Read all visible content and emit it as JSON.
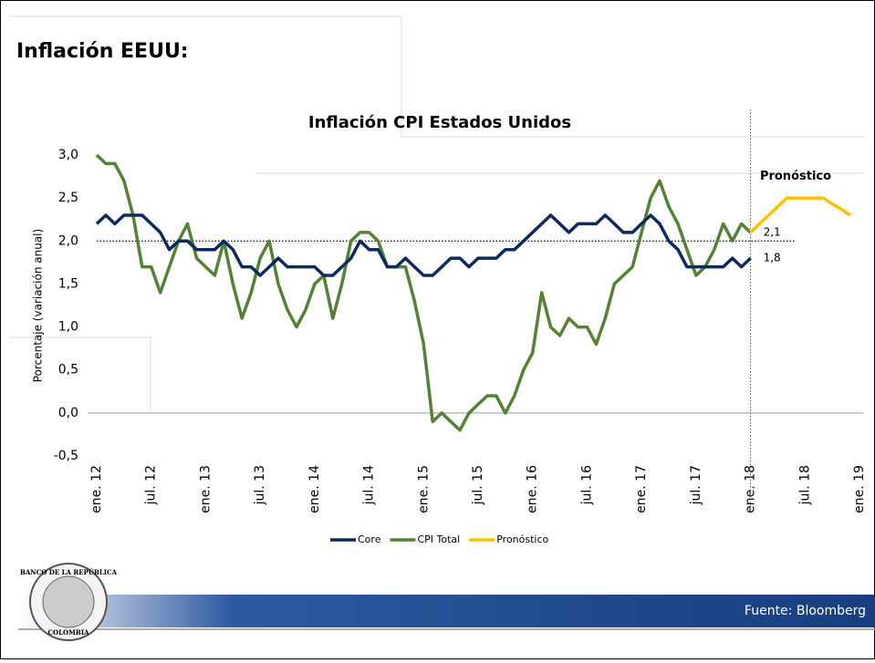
{
  "header": {
    "title": "Inflación EEUU:"
  },
  "footer": {
    "source": "Fuente: Bloomberg"
  },
  "logo": {
    "top": "BANCO DE LA REPÚBLICA",
    "bottom": "COLOMBIA"
  },
  "chart_data": {
    "type": "line",
    "title": "Inflación CPI Estados Unidos",
    "y_label": "Porcentaje (variación anual)",
    "categories": [
      "ene. 12",
      null,
      null,
      null,
      null,
      null,
      "jul. 12",
      null,
      null,
      null,
      null,
      null,
      "ene. 13",
      null,
      null,
      null,
      null,
      null,
      "jul. 13",
      null,
      null,
      null,
      null,
      null,
      "ene. 14",
      null,
      null,
      null,
      null,
      null,
      "jul. 14",
      null,
      null,
      null,
      null,
      null,
      "ene. 15",
      null,
      null,
      null,
      null,
      null,
      "jul. 15",
      null,
      null,
      null,
      null,
      null,
      "ene. 16",
      null,
      null,
      null,
      null,
      null,
      "jul. 16",
      null,
      null,
      null,
      null,
      null,
      "ene. 17",
      null,
      null,
      null,
      null,
      null,
      "jul. 17",
      null,
      null,
      null,
      null,
      null,
      "ene. 18",
      null,
      null,
      null,
      null,
      null,
      "jul. 18",
      null,
      null,
      null,
      null,
      null,
      "ene. 19"
    ],
    "series": [
      {
        "name": "Core",
        "color": "#0d2a5e",
        "values": [
          2.2,
          2.3,
          2.2,
          2.3,
          2.3,
          2.3,
          2.2,
          2.1,
          1.9,
          2.0,
          2.0,
          1.9,
          1.9,
          1.9,
          2.0,
          1.9,
          1.7,
          1.7,
          1.6,
          1.7,
          1.8,
          1.7,
          1.7,
          1.7,
          1.7,
          1.6,
          1.6,
          1.7,
          1.8,
          2.0,
          1.9,
          1.9,
          1.7,
          1.7,
          1.8,
          1.7,
          1.6,
          1.6,
          1.7,
          1.8,
          1.8,
          1.7,
          1.8,
          1.8,
          1.8,
          1.9,
          1.9,
          2.0,
          2.1,
          2.2,
          2.3,
          2.2,
          2.1,
          2.2,
          2.2,
          2.2,
          2.3,
          2.2,
          2.1,
          2.1,
          2.2,
          2.3,
          2.2,
          2.0,
          1.9,
          1.7,
          1.7,
          1.7,
          1.7,
          1.7,
          1.8,
          1.7,
          1.8,
          null,
          null,
          null,
          null,
          null,
          null,
          null,
          null,
          null,
          null,
          null,
          null
        ]
      },
      {
        "name": "CPI Total",
        "color": "#548235",
        "values": [
          3.0,
          2.9,
          2.9,
          2.7,
          2.3,
          1.7,
          1.7,
          1.4,
          1.7,
          2.0,
          2.2,
          1.8,
          1.7,
          1.6,
          2.0,
          1.5,
          1.1,
          1.4,
          1.8,
          2.0,
          1.5,
          1.2,
          1.0,
          1.2,
          1.5,
          1.6,
          1.1,
          1.5,
          2.0,
          2.1,
          2.1,
          2.0,
          1.7,
          1.7,
          1.7,
          1.3,
          0.8,
          -0.1,
          0.0,
          -0.1,
          -0.2,
          0.0,
          0.1,
          0.2,
          0.2,
          0.0,
          0.2,
          0.5,
          0.7,
          1.4,
          1.0,
          0.9,
          1.1,
          1.0,
          1.0,
          0.8,
          1.1,
          1.5,
          1.6,
          1.7,
          2.1,
          2.5,
          2.7,
          2.4,
          2.2,
          1.9,
          1.6,
          1.7,
          1.9,
          2.2,
          2.0,
          2.2,
          2.1,
          null,
          null,
          null,
          null,
          null,
          null,
          null,
          null,
          null,
          null,
          null,
          null
        ]
      },
      {
        "name": "Pronóstico",
        "color": "#ffc000",
        "values": [
          null,
          null,
          null,
          null,
          null,
          null,
          null,
          null,
          null,
          null,
          null,
          null,
          null,
          null,
          null,
          null,
          null,
          null,
          null,
          null,
          null,
          null,
          null,
          null,
          null,
          null,
          null,
          null,
          null,
          null,
          null,
          null,
          null,
          null,
          null,
          null,
          null,
          null,
          null,
          null,
          null,
          null,
          null,
          null,
          null,
          null,
          null,
          null,
          null,
          null,
          null,
          null,
          null,
          null,
          null,
          null,
          null,
          null,
          null,
          null,
          null,
          null,
          null,
          null,
          null,
          null,
          null,
          null,
          null,
          null,
          null,
          null,
          2.1,
          2.2,
          2.3,
          2.4,
          2.5,
          2.5,
          2.5,
          2.5,
          2.5,
          2.43,
          2.37,
          2.3,
          null
        ]
      }
    ],
    "ylim": [
      -0.5,
      3.0
    ],
    "yticks": [
      {
        "value": -0.5,
        "label": "-0,5"
      },
      {
        "value": 0,
        "label": "0,0"
      },
      {
        "value": 0.5,
        "label": "0,5"
      },
      {
        "value": 1.0,
        "label": "1,0"
      },
      {
        "value": 1.5,
        "label": "1,5"
      },
      {
        "value": 2.0,
        "label": "2,0"
      },
      {
        "value": 2.5,
        "label": "2,5"
      },
      {
        "value": 3.0,
        "label": "3,0"
      }
    ],
    "reference_line": 2,
    "annotations": [
      {
        "text": "2,1",
        "y": 2.1
      },
      {
        "text": "1,8",
        "y": 1.8
      },
      {
        "text": "Pronóstico",
        "y": 2.75
      }
    ],
    "legend": "bottom"
  }
}
